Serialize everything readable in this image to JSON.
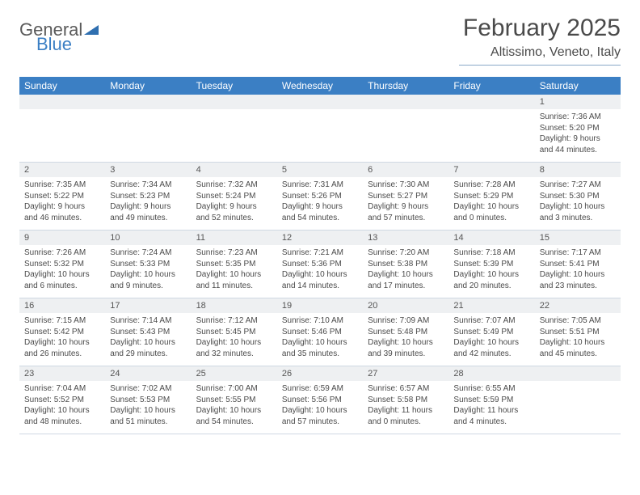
{
  "logo": {
    "word1": "General",
    "word2": "Blue",
    "triangle_color": "#2f6fb0"
  },
  "header": {
    "month_title": "February 2025",
    "location": "Altissimo, Veneto, Italy"
  },
  "colors": {
    "header_bar": "#3b7fc4",
    "header_text": "#ffffff",
    "daynum_bg": "#eef0f2",
    "border": "#cfd8e3",
    "text": "#4a4a4a"
  },
  "layout": {
    "cols": 7,
    "font_family": "Arial",
    "daynum_fontsize": 11,
    "content_fontsize": 10,
    "header_fontsize": 12,
    "title_fontsize": 30,
    "location_fontsize": 16
  },
  "day_headers": [
    "Sunday",
    "Monday",
    "Tuesday",
    "Wednesday",
    "Thursday",
    "Friday",
    "Saturday"
  ],
  "weeks": [
    [
      {
        "n": "",
        "sunrise": "",
        "sunset": "",
        "daylight": ""
      },
      {
        "n": "",
        "sunrise": "",
        "sunset": "",
        "daylight": ""
      },
      {
        "n": "",
        "sunrise": "",
        "sunset": "",
        "daylight": ""
      },
      {
        "n": "",
        "sunrise": "",
        "sunset": "",
        "daylight": ""
      },
      {
        "n": "",
        "sunrise": "",
        "sunset": "",
        "daylight": ""
      },
      {
        "n": "",
        "sunrise": "",
        "sunset": "",
        "daylight": ""
      },
      {
        "n": "1",
        "sunrise": "Sunrise: 7:36 AM",
        "sunset": "Sunset: 5:20 PM",
        "daylight": "Daylight: 9 hours and 44 minutes."
      }
    ],
    [
      {
        "n": "2",
        "sunrise": "Sunrise: 7:35 AM",
        "sunset": "Sunset: 5:22 PM",
        "daylight": "Daylight: 9 hours and 46 minutes."
      },
      {
        "n": "3",
        "sunrise": "Sunrise: 7:34 AM",
        "sunset": "Sunset: 5:23 PM",
        "daylight": "Daylight: 9 hours and 49 minutes."
      },
      {
        "n": "4",
        "sunrise": "Sunrise: 7:32 AM",
        "sunset": "Sunset: 5:24 PM",
        "daylight": "Daylight: 9 hours and 52 minutes."
      },
      {
        "n": "5",
        "sunrise": "Sunrise: 7:31 AM",
        "sunset": "Sunset: 5:26 PM",
        "daylight": "Daylight: 9 hours and 54 minutes."
      },
      {
        "n": "6",
        "sunrise": "Sunrise: 7:30 AM",
        "sunset": "Sunset: 5:27 PM",
        "daylight": "Daylight: 9 hours and 57 minutes."
      },
      {
        "n": "7",
        "sunrise": "Sunrise: 7:28 AM",
        "sunset": "Sunset: 5:29 PM",
        "daylight": "Daylight: 10 hours and 0 minutes."
      },
      {
        "n": "8",
        "sunrise": "Sunrise: 7:27 AM",
        "sunset": "Sunset: 5:30 PM",
        "daylight": "Daylight: 10 hours and 3 minutes."
      }
    ],
    [
      {
        "n": "9",
        "sunrise": "Sunrise: 7:26 AM",
        "sunset": "Sunset: 5:32 PM",
        "daylight": "Daylight: 10 hours and 6 minutes."
      },
      {
        "n": "10",
        "sunrise": "Sunrise: 7:24 AM",
        "sunset": "Sunset: 5:33 PM",
        "daylight": "Daylight: 10 hours and 9 minutes."
      },
      {
        "n": "11",
        "sunrise": "Sunrise: 7:23 AM",
        "sunset": "Sunset: 5:35 PM",
        "daylight": "Daylight: 10 hours and 11 minutes."
      },
      {
        "n": "12",
        "sunrise": "Sunrise: 7:21 AM",
        "sunset": "Sunset: 5:36 PM",
        "daylight": "Daylight: 10 hours and 14 minutes."
      },
      {
        "n": "13",
        "sunrise": "Sunrise: 7:20 AM",
        "sunset": "Sunset: 5:38 PM",
        "daylight": "Daylight: 10 hours and 17 minutes."
      },
      {
        "n": "14",
        "sunrise": "Sunrise: 7:18 AM",
        "sunset": "Sunset: 5:39 PM",
        "daylight": "Daylight: 10 hours and 20 minutes."
      },
      {
        "n": "15",
        "sunrise": "Sunrise: 7:17 AM",
        "sunset": "Sunset: 5:41 PM",
        "daylight": "Daylight: 10 hours and 23 minutes."
      }
    ],
    [
      {
        "n": "16",
        "sunrise": "Sunrise: 7:15 AM",
        "sunset": "Sunset: 5:42 PM",
        "daylight": "Daylight: 10 hours and 26 minutes."
      },
      {
        "n": "17",
        "sunrise": "Sunrise: 7:14 AM",
        "sunset": "Sunset: 5:43 PM",
        "daylight": "Daylight: 10 hours and 29 minutes."
      },
      {
        "n": "18",
        "sunrise": "Sunrise: 7:12 AM",
        "sunset": "Sunset: 5:45 PM",
        "daylight": "Daylight: 10 hours and 32 minutes."
      },
      {
        "n": "19",
        "sunrise": "Sunrise: 7:10 AM",
        "sunset": "Sunset: 5:46 PM",
        "daylight": "Daylight: 10 hours and 35 minutes."
      },
      {
        "n": "20",
        "sunrise": "Sunrise: 7:09 AM",
        "sunset": "Sunset: 5:48 PM",
        "daylight": "Daylight: 10 hours and 39 minutes."
      },
      {
        "n": "21",
        "sunrise": "Sunrise: 7:07 AM",
        "sunset": "Sunset: 5:49 PM",
        "daylight": "Daylight: 10 hours and 42 minutes."
      },
      {
        "n": "22",
        "sunrise": "Sunrise: 7:05 AM",
        "sunset": "Sunset: 5:51 PM",
        "daylight": "Daylight: 10 hours and 45 minutes."
      }
    ],
    [
      {
        "n": "23",
        "sunrise": "Sunrise: 7:04 AM",
        "sunset": "Sunset: 5:52 PM",
        "daylight": "Daylight: 10 hours and 48 minutes."
      },
      {
        "n": "24",
        "sunrise": "Sunrise: 7:02 AM",
        "sunset": "Sunset: 5:53 PM",
        "daylight": "Daylight: 10 hours and 51 minutes."
      },
      {
        "n": "25",
        "sunrise": "Sunrise: 7:00 AM",
        "sunset": "Sunset: 5:55 PM",
        "daylight": "Daylight: 10 hours and 54 minutes."
      },
      {
        "n": "26",
        "sunrise": "Sunrise: 6:59 AM",
        "sunset": "Sunset: 5:56 PM",
        "daylight": "Daylight: 10 hours and 57 minutes."
      },
      {
        "n": "27",
        "sunrise": "Sunrise: 6:57 AM",
        "sunset": "Sunset: 5:58 PM",
        "daylight": "Daylight: 11 hours and 0 minutes."
      },
      {
        "n": "28",
        "sunrise": "Sunrise: 6:55 AM",
        "sunset": "Sunset: 5:59 PM",
        "daylight": "Daylight: 11 hours and 4 minutes."
      },
      {
        "n": "",
        "sunrise": "",
        "sunset": "",
        "daylight": ""
      }
    ]
  ]
}
